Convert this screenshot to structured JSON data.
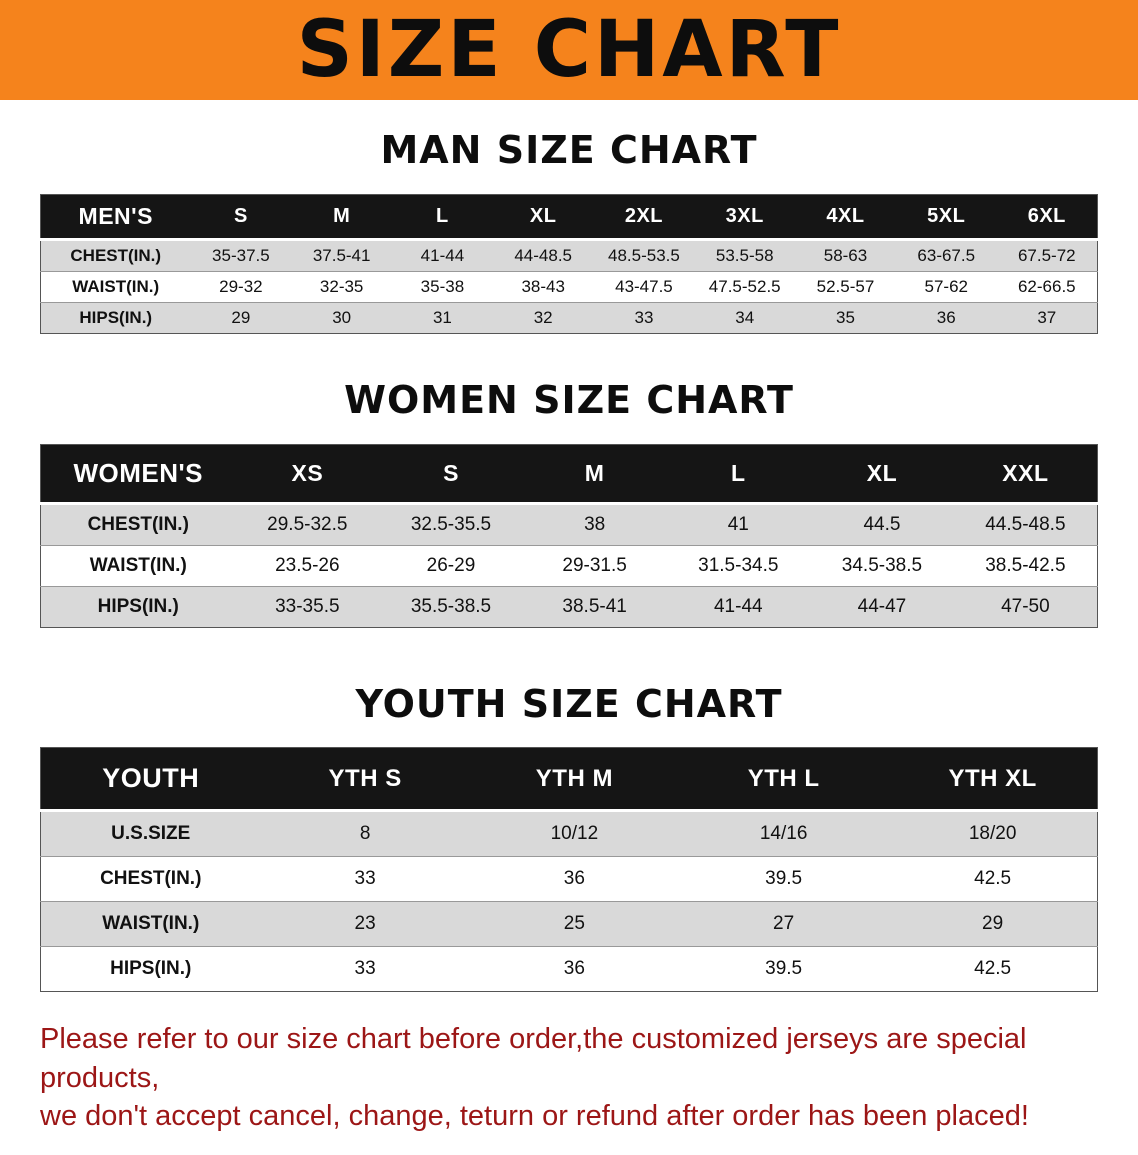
{
  "banner": {
    "title": "SIZE CHART"
  },
  "colors": {
    "banner_bg": "#f5831c",
    "table_header_bg": "#151515",
    "row_stripe": "#d9d9d9",
    "notice_text": "#9c1616"
  },
  "footer": {
    "line1": "Please refer to our size chart before order,the customized jerseys are special products,",
    "line2": "we don't accept cancel, change, teturn or refund after order has been placed!"
  },
  "chart_data": [
    {
      "type": "table",
      "title": "MAN SIZE CHART",
      "columns": [
        "MEN'S",
        "S",
        "M",
        "L",
        "XL",
        "2XL",
        "3XL",
        "4XL",
        "5XL",
        "6XL"
      ],
      "rows": [
        [
          "CHEST(IN.)",
          "35-37.5",
          "37.5-41",
          "41-44",
          "44-48.5",
          "48.5-53.5",
          "53.5-58",
          "58-63",
          "63-67.5",
          "67.5-72"
        ],
        [
          "WAIST(IN.)",
          "29-32",
          "32-35",
          "35-38",
          "38-43",
          "43-47.5",
          "47.5-52.5",
          "52.5-57",
          "57-62",
          "62-66.5"
        ],
        [
          "HIPS(IN.)",
          "29",
          "30",
          "31",
          "32",
          "33",
          "34",
          "35",
          "36",
          "37"
        ]
      ]
    },
    {
      "type": "table",
      "title": "WOMEN SIZE CHART",
      "columns": [
        "WOMEN'S",
        "XS",
        "S",
        "M",
        "L",
        "XL",
        "XXL"
      ],
      "rows": [
        [
          "CHEST(IN.)",
          "29.5-32.5",
          "32.5-35.5",
          "38",
          "41",
          "44.5",
          "44.5-48.5"
        ],
        [
          "WAIST(IN.)",
          "23.5-26",
          "26-29",
          "29-31.5",
          "31.5-34.5",
          "34.5-38.5",
          "38.5-42.5"
        ],
        [
          "HIPS(IN.)",
          "33-35.5",
          "35.5-38.5",
          "38.5-41",
          "41-44",
          "44-47",
          "47-50"
        ]
      ]
    },
    {
      "type": "table",
      "title": "YOUTH SIZE CHART",
      "columns": [
        "YOUTH",
        "YTH S",
        "YTH M",
        "YTH L",
        "YTH XL"
      ],
      "rows": [
        [
          "U.S.SIZE",
          "8",
          "10/12",
          "14/16",
          "18/20"
        ],
        [
          "CHEST(IN.)",
          "33",
          "36",
          "39.5",
          "42.5"
        ],
        [
          "WAIST(IN.)",
          "23",
          "25",
          "27",
          "29"
        ],
        [
          "HIPS(IN.)",
          "33",
          "36",
          "39.5",
          "42.5"
        ]
      ]
    }
  ]
}
